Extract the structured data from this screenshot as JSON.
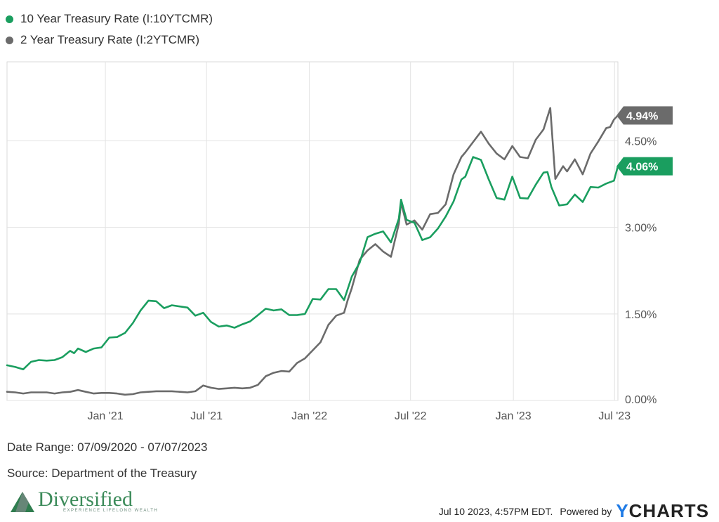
{
  "legend": [
    {
      "label": "10 Year Treasury Rate (I:10YTCMR)",
      "color": "#1a9e5f"
    },
    {
      "label": "2 Year Treasury Rate (I:2YTCMR)",
      "color": "#6b6b6b"
    }
  ],
  "footer": {
    "date_range": "Date Range: 07/09/2020 - 07/07/2023",
    "source": "Source: Department of the Treasury",
    "timestamp": "Jul 10 2023, 4:57PM EDT.",
    "powered_by": "Powered by",
    "brand_y": "Y",
    "brand_rest": "CHARTS"
  },
  "logo": {
    "name": "Diversified",
    "tagline": "EXPERIENCE LIFELONG WEALTH"
  },
  "chart_data": {
    "type": "line",
    "x_start": "2020-07-09",
    "x_end": "2023-07-07",
    "x_tick_labels": [
      {
        "label": "Jan '21",
        "date": "2021-01-01"
      },
      {
        "label": "Jul '21",
        "date": "2021-07-01"
      },
      {
        "label": "Jan '22",
        "date": "2022-01-01"
      },
      {
        "label": "Jul '22",
        "date": "2022-07-01"
      },
      {
        "label": "Jan '23",
        "date": "2023-01-01"
      },
      {
        "label": "Jul '23",
        "date": "2023-07-01"
      }
    ],
    "y_tick_labels": [
      {
        "label": "0.00%",
        "value": 0.0
      },
      {
        "label": "1.50%",
        "value": 1.5
      },
      {
        "label": "3.00%",
        "value": 3.0
      },
      {
        "label": "4.50%",
        "value": 4.5
      }
    ],
    "ylim": [
      0,
      5.87
    ],
    "grid": true,
    "legend_position": "top-left",
    "series": [
      {
        "name": "10 Year Treasury Rate (I:10YTCMR)",
        "color": "#1a9e5f",
        "end_label": "4.06%",
        "points": [
          [
            "2020-07-09",
            0.61
          ],
          [
            "2020-07-24",
            0.58
          ],
          [
            "2020-08-07",
            0.54
          ],
          [
            "2020-08-21",
            0.67
          ],
          [
            "2020-09-04",
            0.7
          ],
          [
            "2020-09-18",
            0.69
          ],
          [
            "2020-10-02",
            0.7
          ],
          [
            "2020-10-16",
            0.75
          ],
          [
            "2020-10-30",
            0.86
          ],
          [
            "2020-11-06",
            0.82
          ],
          [
            "2020-11-13",
            0.9
          ],
          [
            "2020-11-27",
            0.84
          ],
          [
            "2020-12-11",
            0.9
          ],
          [
            "2020-12-25",
            0.92
          ],
          [
            "2021-01-08",
            1.09
          ],
          [
            "2021-01-22",
            1.1
          ],
          [
            "2021-02-05",
            1.17
          ],
          [
            "2021-02-19",
            1.34
          ],
          [
            "2021-03-05",
            1.56
          ],
          [
            "2021-03-19",
            1.73
          ],
          [
            "2021-04-02",
            1.72
          ],
          [
            "2021-04-16",
            1.6
          ],
          [
            "2021-04-30",
            1.65
          ],
          [
            "2021-05-14",
            1.63
          ],
          [
            "2021-05-28",
            1.61
          ],
          [
            "2021-06-11",
            1.47
          ],
          [
            "2021-06-25",
            1.52
          ],
          [
            "2021-07-09",
            1.36
          ],
          [
            "2021-07-23",
            1.28
          ],
          [
            "2021-08-06",
            1.3
          ],
          [
            "2021-08-20",
            1.26
          ],
          [
            "2021-09-03",
            1.32
          ],
          [
            "2021-09-17",
            1.37
          ],
          [
            "2021-10-01",
            1.48
          ],
          [
            "2021-10-15",
            1.59
          ],
          [
            "2021-10-29",
            1.56
          ],
          [
            "2021-11-12",
            1.58
          ],
          [
            "2021-11-26",
            1.48
          ],
          [
            "2021-12-10",
            1.48
          ],
          [
            "2021-12-24",
            1.5
          ],
          [
            "2022-01-07",
            1.76
          ],
          [
            "2022-01-21",
            1.75
          ],
          [
            "2022-02-04",
            1.93
          ],
          [
            "2022-02-18",
            1.93
          ],
          [
            "2022-03-04",
            1.74
          ],
          [
            "2022-03-18",
            2.15
          ],
          [
            "2022-04-01",
            2.39
          ],
          [
            "2022-04-15",
            2.83
          ],
          [
            "2022-04-29",
            2.89
          ],
          [
            "2022-05-13",
            2.93
          ],
          [
            "2022-05-27",
            2.74
          ],
          [
            "2022-06-10",
            3.15
          ],
          [
            "2022-06-14",
            3.48
          ],
          [
            "2022-06-24",
            3.13
          ],
          [
            "2022-07-08",
            3.08
          ],
          [
            "2022-07-22",
            2.78
          ],
          [
            "2022-08-05",
            2.83
          ],
          [
            "2022-08-19",
            2.98
          ],
          [
            "2022-09-02",
            3.19
          ],
          [
            "2022-09-16",
            3.45
          ],
          [
            "2022-09-30",
            3.83
          ],
          [
            "2022-10-07",
            3.88
          ],
          [
            "2022-10-21",
            4.22
          ],
          [
            "2022-11-04",
            4.17
          ],
          [
            "2022-11-18",
            3.83
          ],
          [
            "2022-12-02",
            3.51
          ],
          [
            "2022-12-16",
            3.48
          ],
          [
            "2022-12-30",
            3.88
          ],
          [
            "2023-01-13",
            3.51
          ],
          [
            "2023-01-27",
            3.5
          ],
          [
            "2023-02-10",
            3.74
          ],
          [
            "2023-02-24",
            3.95
          ],
          [
            "2023-03-03",
            3.96
          ],
          [
            "2023-03-10",
            3.7
          ],
          [
            "2023-03-24",
            3.38
          ],
          [
            "2023-04-07",
            3.4
          ],
          [
            "2023-04-21",
            3.57
          ],
          [
            "2023-05-05",
            3.44
          ],
          [
            "2023-05-19",
            3.7
          ],
          [
            "2023-06-02",
            3.69
          ],
          [
            "2023-06-16",
            3.76
          ],
          [
            "2023-06-30",
            3.81
          ],
          [
            "2023-07-07",
            4.06
          ]
        ]
      },
      {
        "name": "2 Year Treasury Rate (I:2YTCMR)",
        "color": "#6b6b6b",
        "end_label": "4.94%",
        "points": [
          [
            "2020-07-09",
            0.15
          ],
          [
            "2020-07-24",
            0.14
          ],
          [
            "2020-08-07",
            0.12
          ],
          [
            "2020-08-21",
            0.14
          ],
          [
            "2020-09-04",
            0.14
          ],
          [
            "2020-09-18",
            0.14
          ],
          [
            "2020-10-02",
            0.12
          ],
          [
            "2020-10-16",
            0.14
          ],
          [
            "2020-10-30",
            0.15
          ],
          [
            "2020-11-13",
            0.18
          ],
          [
            "2020-11-27",
            0.15
          ],
          [
            "2020-12-11",
            0.12
          ],
          [
            "2020-12-25",
            0.13
          ],
          [
            "2021-01-08",
            0.13
          ],
          [
            "2021-01-22",
            0.12
          ],
          [
            "2021-02-05",
            0.1
          ],
          [
            "2021-02-19",
            0.11
          ],
          [
            "2021-03-05",
            0.14
          ],
          [
            "2021-03-19",
            0.15
          ],
          [
            "2021-04-02",
            0.16
          ],
          [
            "2021-04-16",
            0.16
          ],
          [
            "2021-04-30",
            0.16
          ],
          [
            "2021-05-14",
            0.15
          ],
          [
            "2021-05-28",
            0.14
          ],
          [
            "2021-06-11",
            0.16
          ],
          [
            "2021-06-25",
            0.26
          ],
          [
            "2021-07-09",
            0.22
          ],
          [
            "2021-07-23",
            0.2
          ],
          [
            "2021-08-06",
            0.21
          ],
          [
            "2021-08-20",
            0.22
          ],
          [
            "2021-09-03",
            0.21
          ],
          [
            "2021-09-17",
            0.22
          ],
          [
            "2021-10-01",
            0.27
          ],
          [
            "2021-10-15",
            0.42
          ],
          [
            "2021-10-29",
            0.48
          ],
          [
            "2021-11-12",
            0.51
          ],
          [
            "2021-11-26",
            0.5
          ],
          [
            "2021-12-10",
            0.65
          ],
          [
            "2021-12-24",
            0.73
          ],
          [
            "2022-01-07",
            0.87
          ],
          [
            "2022-01-21",
            1.01
          ],
          [
            "2022-02-04",
            1.31
          ],
          [
            "2022-02-18",
            1.47
          ],
          [
            "2022-03-04",
            1.52
          ],
          [
            "2022-03-11",
            1.75
          ],
          [
            "2022-03-18",
            1.95
          ],
          [
            "2022-04-01",
            2.44
          ],
          [
            "2022-04-15",
            2.6
          ],
          [
            "2022-04-29",
            2.71
          ],
          [
            "2022-05-13",
            2.58
          ],
          [
            "2022-05-27",
            2.49
          ],
          [
            "2022-06-10",
            3.06
          ],
          [
            "2022-06-14",
            3.43
          ],
          [
            "2022-06-24",
            3.05
          ],
          [
            "2022-07-08",
            3.12
          ],
          [
            "2022-07-22",
            2.96
          ],
          [
            "2022-08-05",
            3.23
          ],
          [
            "2022-08-19",
            3.25
          ],
          [
            "2022-09-02",
            3.4
          ],
          [
            "2022-09-16",
            3.92
          ],
          [
            "2022-09-30",
            4.22
          ],
          [
            "2022-10-07",
            4.3
          ],
          [
            "2022-10-21",
            4.48
          ],
          [
            "2022-11-04",
            4.66
          ],
          [
            "2022-11-18",
            4.45
          ],
          [
            "2022-12-02",
            4.28
          ],
          [
            "2022-12-16",
            4.18
          ],
          [
            "2022-12-30",
            4.41
          ],
          [
            "2023-01-13",
            4.22
          ],
          [
            "2023-01-27",
            4.2
          ],
          [
            "2023-02-10",
            4.52
          ],
          [
            "2023-02-24",
            4.7
          ],
          [
            "2023-03-08",
            5.07
          ],
          [
            "2023-03-17",
            3.84
          ],
          [
            "2023-03-31",
            4.06
          ],
          [
            "2023-04-07",
            3.97
          ],
          [
            "2023-04-21",
            4.18
          ],
          [
            "2023-05-05",
            3.92
          ],
          [
            "2023-05-19",
            4.28
          ],
          [
            "2023-06-02",
            4.49
          ],
          [
            "2023-06-16",
            4.72
          ],
          [
            "2023-06-23",
            4.74
          ],
          [
            "2023-06-30",
            4.87
          ],
          [
            "2023-07-07",
            4.94
          ]
        ]
      }
    ]
  }
}
